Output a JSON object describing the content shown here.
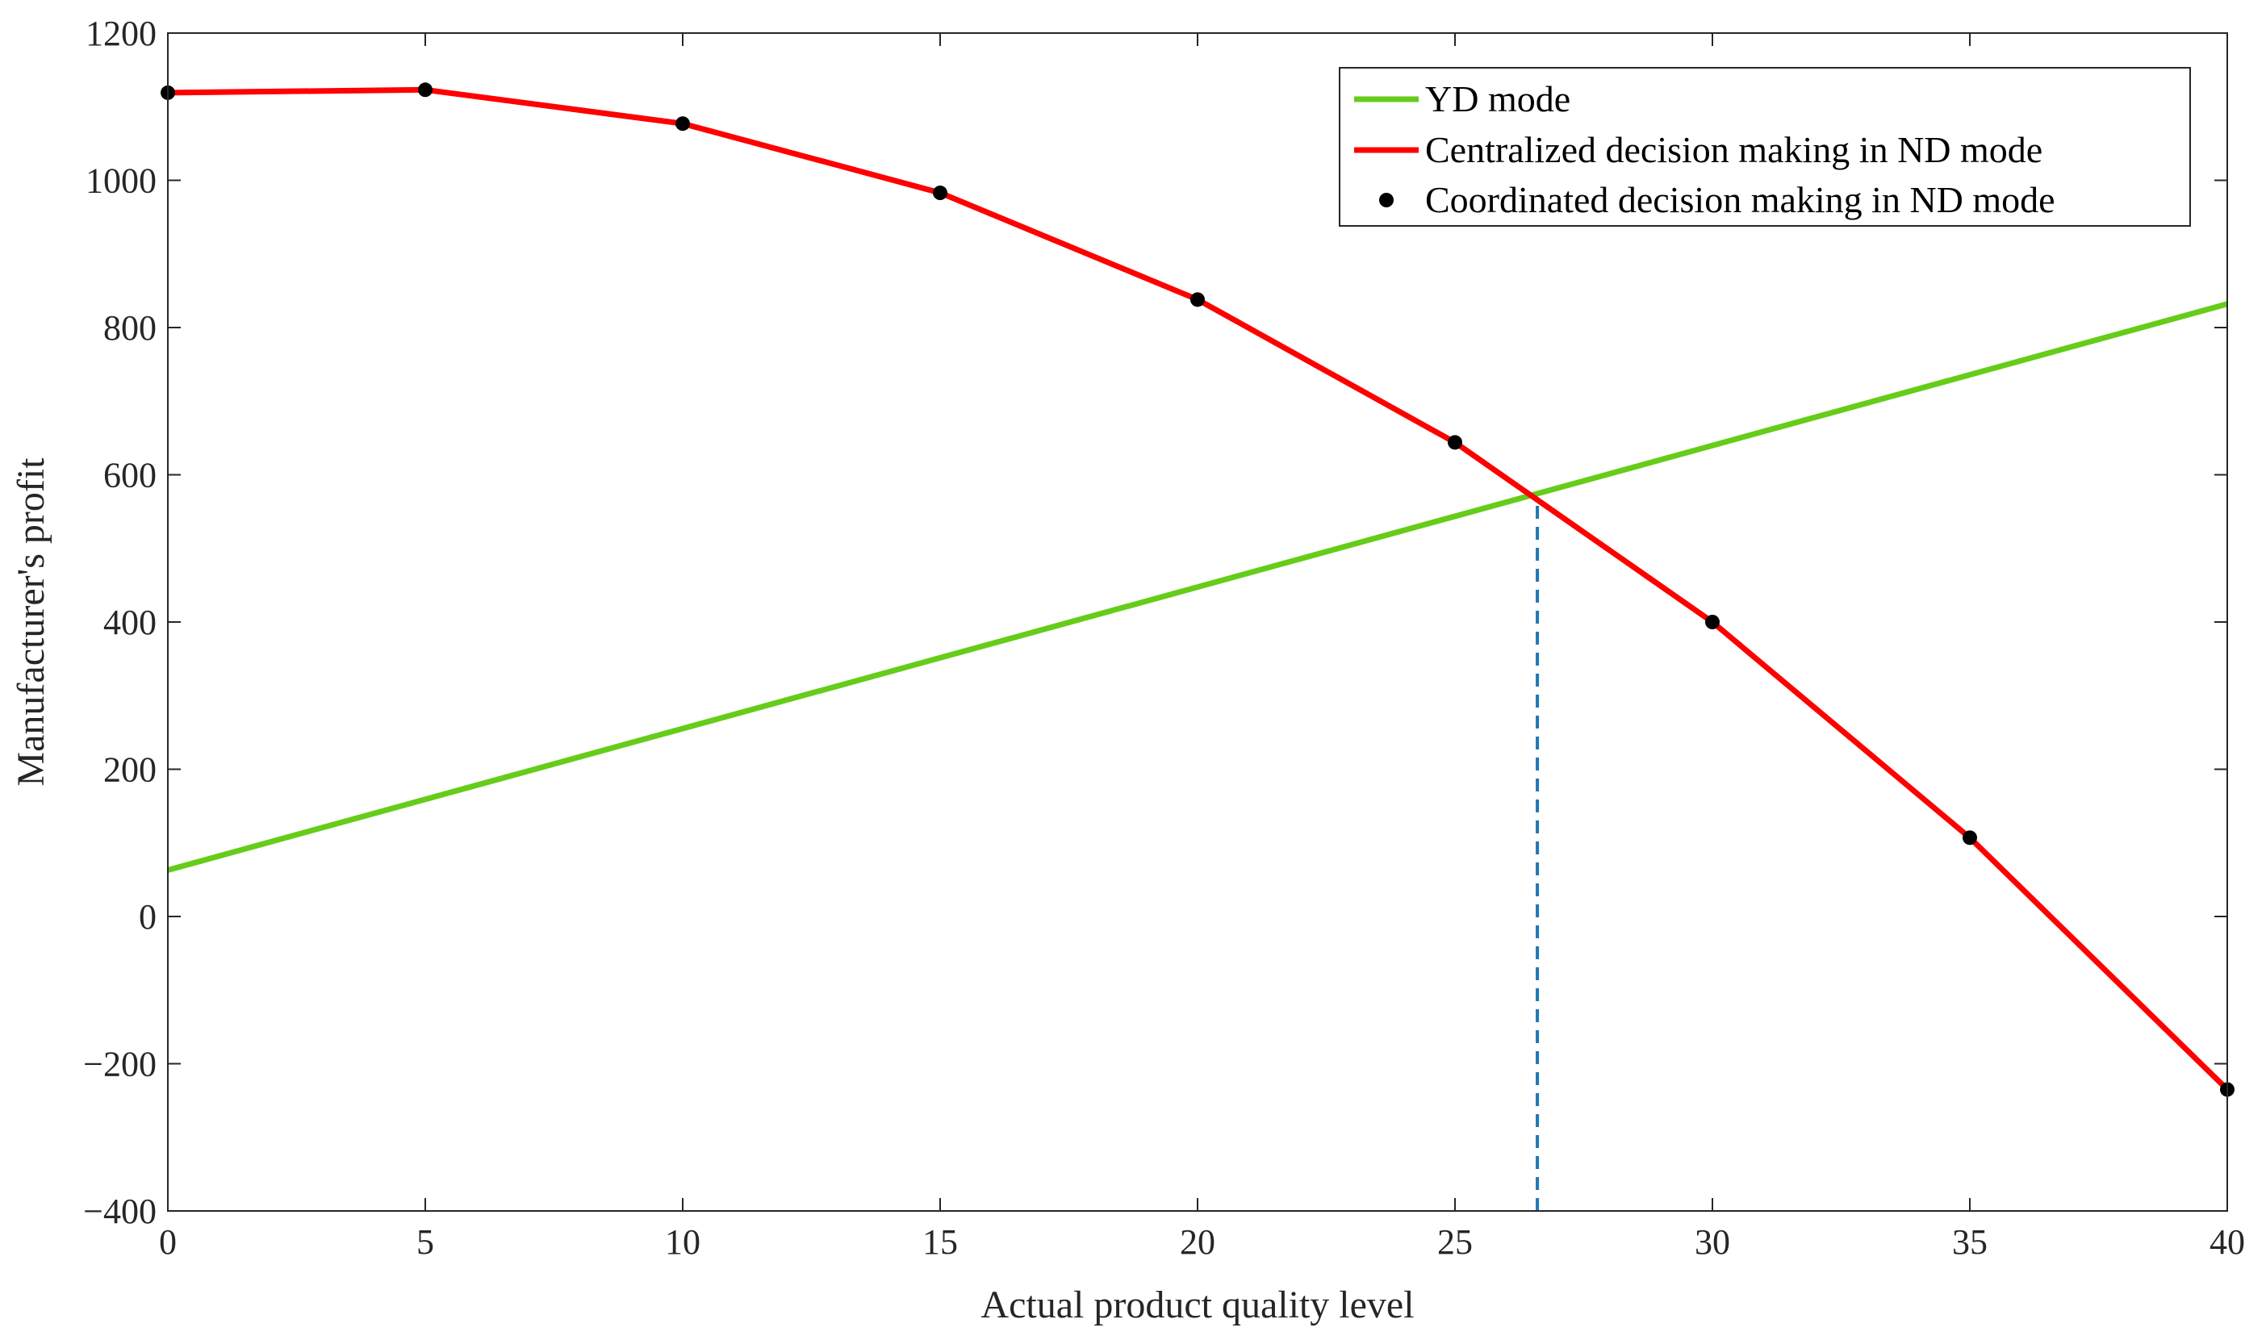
{
  "chart_data": {
    "type": "line",
    "title": "",
    "xlabel": "Actual product quality level",
    "ylabel": "Manufacturer's profit",
    "xlim": [
      0,
      40
    ],
    "ylim": [
      -400,
      1200
    ],
    "xticks": [
      0,
      5,
      10,
      15,
      20,
      25,
      30,
      35,
      40
    ],
    "yticks": [
      -400,
      -200,
      0,
      200,
      400,
      600,
      800,
      1000,
      1200
    ],
    "xtick_labels": [
      "0",
      "5",
      "10",
      "15",
      "20",
      "25",
      "30",
      "35",
      "40"
    ],
    "ytick_labels": [
      "−400",
      "−200",
      "0",
      "200",
      "400",
      "600",
      "800",
      "1000",
      "1200"
    ],
    "grid": false,
    "legend_position": "top-right",
    "series": [
      {
        "name": "YD mode",
        "style": "line",
        "color": "#66CC1A",
        "x": [
          0,
          40
        ],
        "values": [
          63,
          832
        ]
      },
      {
        "name": "Centralized decision making in ND mode",
        "style": "line",
        "color": "#FF0000",
        "x": [
          0,
          5,
          10,
          15,
          20,
          25,
          30,
          35,
          40
        ],
        "values": [
          1119,
          1123,
          1077,
          983,
          838,
          644,
          400,
          107,
          -235
        ]
      },
      {
        "name": "Coordinated decision making in ND mode",
        "style": "markers",
        "color": "#000000",
        "x": [
          0,
          5,
          10,
          15,
          20,
          25,
          30,
          35,
          40
        ],
        "values": [
          1119,
          1123,
          1077,
          983,
          838,
          644,
          400,
          107,
          -235
        ]
      }
    ],
    "annotations": [
      {
        "type": "vertical-dashed-line",
        "x": 26.6,
        "y_from": -400,
        "y_to": 563,
        "color": "#1F77B4"
      }
    ]
  }
}
